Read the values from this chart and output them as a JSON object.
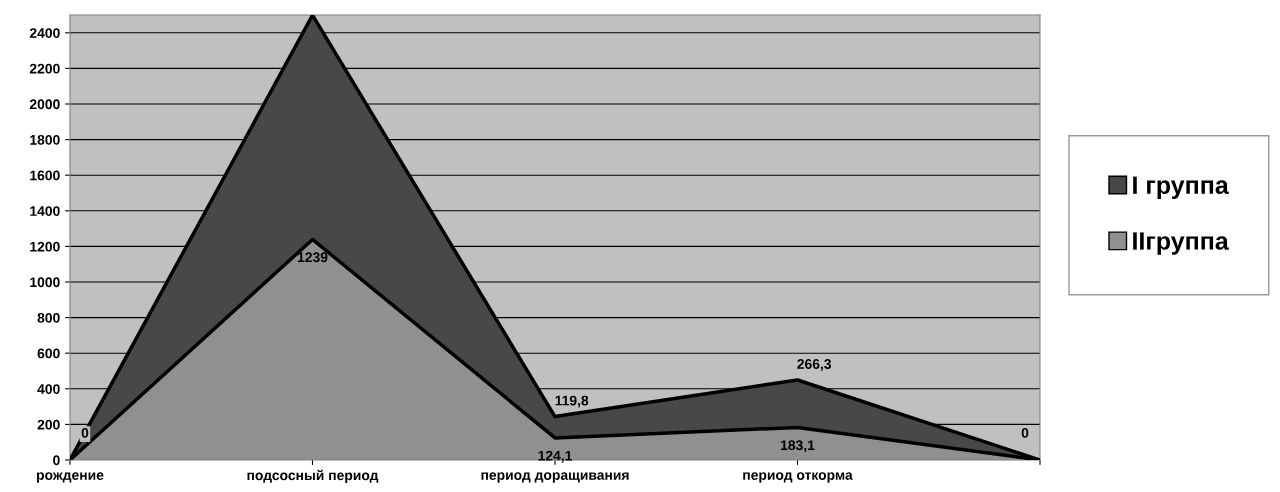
{
  "chart_data": {
    "type": "area",
    "stacked": true,
    "categories": [
      "рождение",
      "подсосный период",
      "период доращивания",
      "период откорма",
      null
    ],
    "series": [
      {
        "name": "IIгруппа",
        "color": "#909090",
        "values": [
          0,
          1239,
          124.1,
          183.1,
          0
        ],
        "value_labels": [
          "0",
          "1239",
          "124,1",
          "183,1",
          "0"
        ]
      },
      {
        "name": "I группа",
        "color": "#484848",
        "values": [
          0,
          1260,
          119.8,
          266.3,
          0
        ],
        "value_labels": [
          null,
          null,
          "119,8",
          "266,3",
          null
        ]
      }
    ],
    "ylim": [
      0,
      2500
    ],
    "yticks": [
      0,
      200,
      400,
      600,
      800,
      1000,
      1200,
      1400,
      1600,
      1800,
      2000,
      2200,
      2400
    ],
    "grid": "y",
    "legend": "right"
  }
}
